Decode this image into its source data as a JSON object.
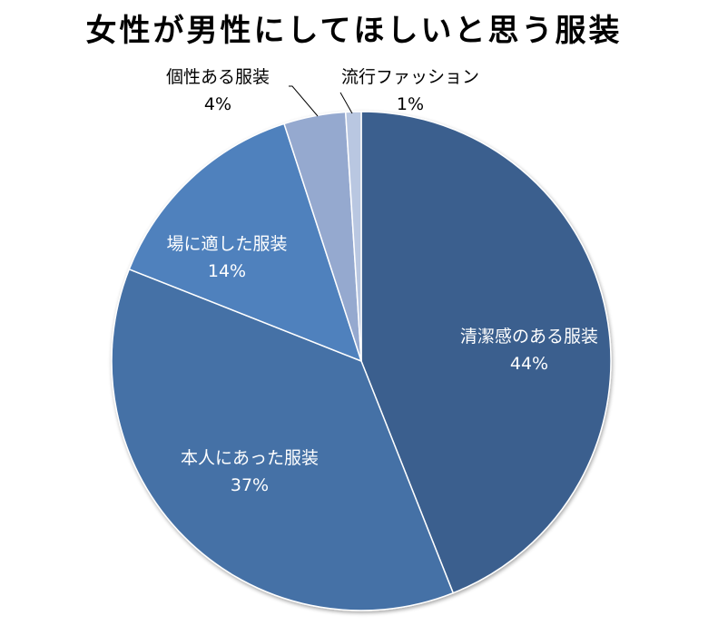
{
  "title": "女性が男性にしてほしいと思う服装",
  "chart_data": {
    "type": "pie",
    "title": "女性が男性にしてほしいと思う服装",
    "categories": [
      "清潔感のある服装",
      "本人にあった服装",
      "場に適した服装",
      "個性ある服装",
      "流行ファッション"
    ],
    "values": [
      44,
      37,
      14,
      4,
      1
    ],
    "labels": [
      "44%",
      "37%",
      "14%",
      "4%",
      "1%"
    ],
    "colors": [
      "#3A5F8E",
      "#4571A6",
      "#4F81BD",
      "#95A9CF",
      "#B9C7E1"
    ],
    "start_angle_deg": 0,
    "direction": "clockwise",
    "legend": "none (data labels)"
  },
  "labels": [
    {
      "name": "清潔感のある服装",
      "pct": "44%"
    },
    {
      "name": "本人にあった服装",
      "pct": "37%"
    },
    {
      "name": "場に適した服装",
      "pct": "14%"
    },
    {
      "name": "個性ある服装",
      "pct": "4%"
    },
    {
      "name": "流行ファッション",
      "pct": "1%"
    }
  ]
}
